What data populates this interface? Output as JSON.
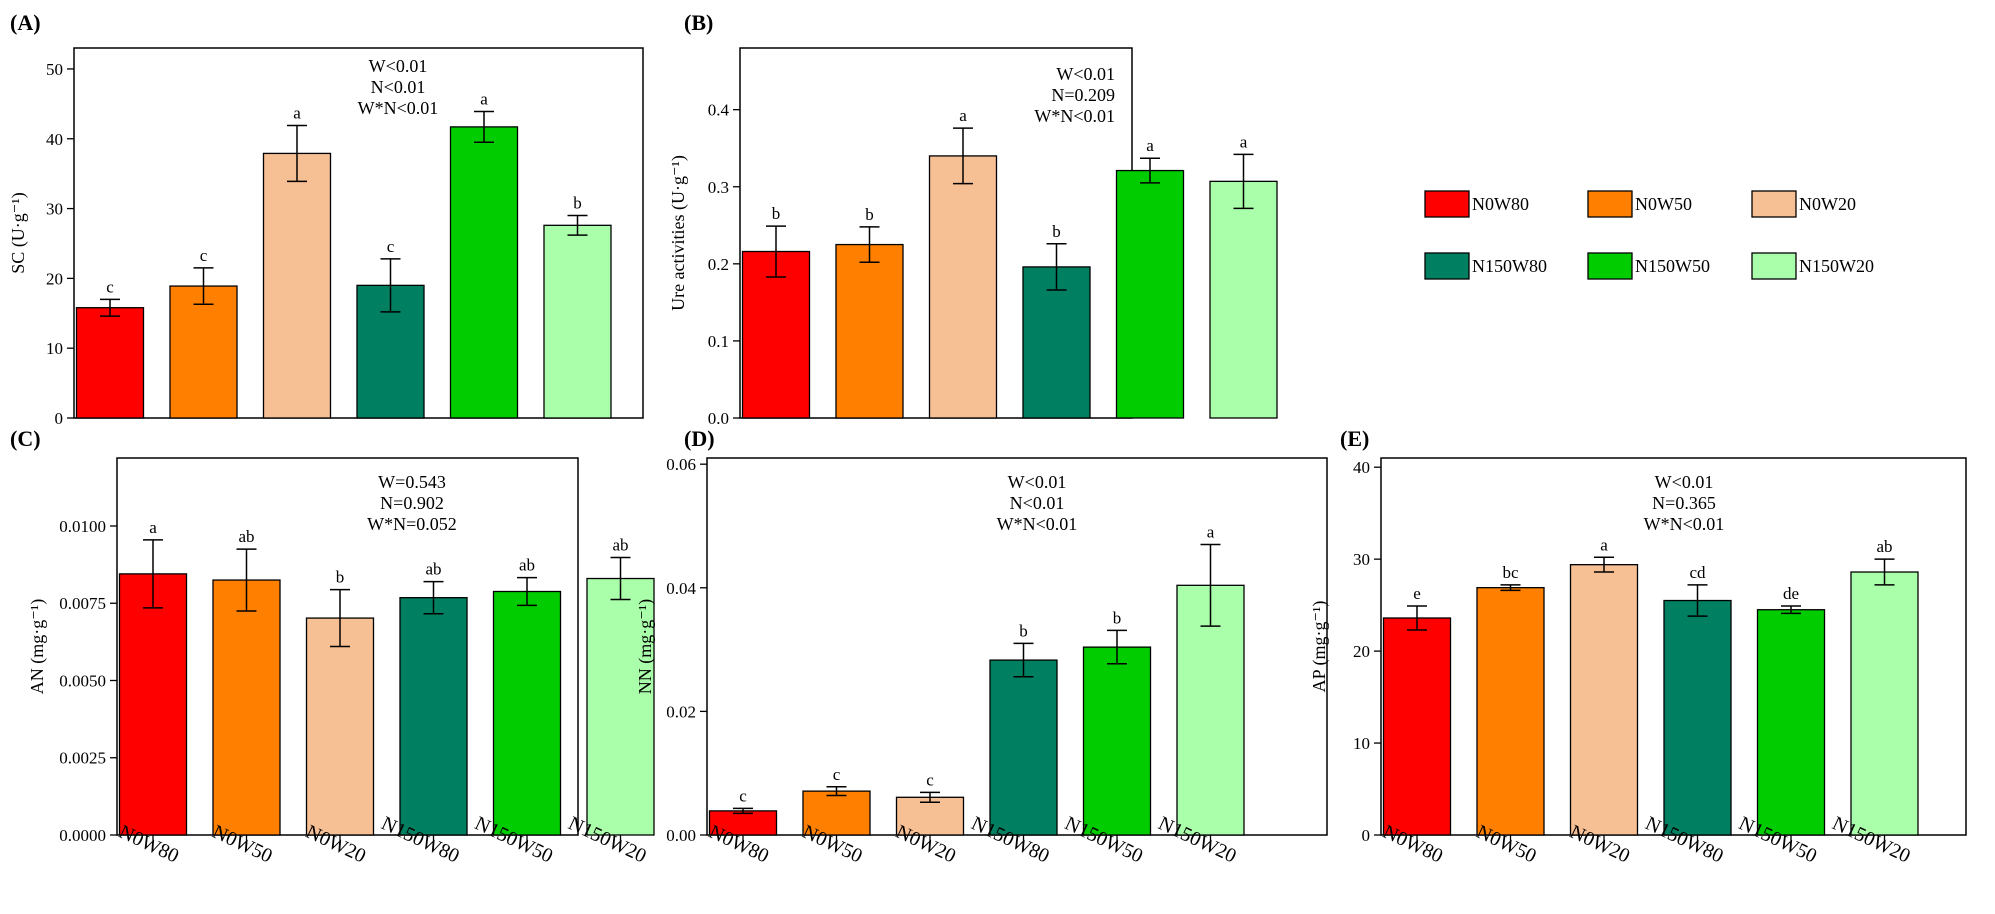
{
  "colors": {
    "N0W80": "#ff0000",
    "N0W50": "#ff8000",
    "N0W20": "#f7bf94",
    "N150W80": "#008060",
    "N150W50": "#00cc00",
    "N150W20": "#aaffaa"
  },
  "legend": {
    "entries": [
      {
        "key": "N0W80",
        "label": "N0W80"
      },
      {
        "key": "N0W50",
        "label": "N0W50"
      },
      {
        "key": "N0W20",
        "label": "N0W20"
      },
      {
        "key": "N150W80",
        "label": "N150W80"
      },
      {
        "key": "N150W50",
        "label": "N150W50"
      },
      {
        "key": "N150W20",
        "label": "N150W20"
      }
    ]
  },
  "chart_data": [
    {
      "id": "A",
      "panel_label": "(A)",
      "type": "bar",
      "ylabel": "SC (U·g⁻¹)",
      "ylim": [
        0,
        53
      ],
      "yticks": [
        "0",
        "10",
        "20",
        "30",
        "40",
        "50"
      ],
      "ytick_values": [
        0,
        10,
        20,
        30,
        40,
        50
      ],
      "categories": [
        "N0W80",
        "N0W50",
        "N0W20",
        "N150W80",
        "N150W50",
        "N150W20"
      ],
      "show_xlabels": false,
      "values": [
        15.8,
        18.9,
        37.9,
        19.0,
        41.7,
        27.6
      ],
      "errors": [
        1.2,
        2.6,
        4.0,
        3.8,
        2.2,
        1.4
      ],
      "letters": [
        "c",
        "c",
        "a",
        "c",
        "a",
        "b"
      ],
      "stats": [
        "W<0.01",
        "N<0.01",
        "W*N<0.01"
      ]
    },
    {
      "id": "B",
      "panel_label": "(B)",
      "type": "bar",
      "ylabel": "Ure activities (U·g⁻¹)",
      "ylim": [
        0,
        0.48
      ],
      "yticks": [
        "0.0",
        "0.1",
        "0.2",
        "0.3",
        "0.4"
      ],
      "ytick_values": [
        0,
        0.1,
        0.2,
        0.3,
        0.4
      ],
      "categories": [
        "N0W80",
        "N0W50",
        "N0W20",
        "N150W80",
        "N150W50",
        "N150W20"
      ],
      "show_xlabels": false,
      "values": [
        0.216,
        0.225,
        0.34,
        0.196,
        0.321,
        0.307
      ],
      "errors": [
        0.033,
        0.023,
        0.036,
        0.03,
        0.016,
        0.035
      ],
      "letters": [
        "b",
        "b",
        "a",
        "b",
        "a",
        "a"
      ],
      "stats": [
        "W<0.01",
        "N=0.209",
        "W*N<0.01"
      ]
    },
    {
      "id": "C",
      "panel_label": "(C)",
      "type": "bar",
      "ylabel": "AN  (mg·g⁻¹)",
      "ylim": [
        0,
        0.0122
      ],
      "yticks": [
        "0.0000",
        "0.0025",
        "0.0050",
        "0.0075",
        "0.0100"
      ],
      "ytick_values": [
        0,
        0.0025,
        0.005,
        0.0075,
        0.01
      ],
      "categories": [
        "N0W80",
        "N0W50",
        "N0W20",
        "N150W80",
        "N150W50",
        "N150W20"
      ],
      "show_xlabels": true,
      "values": [
        0.00845,
        0.00825,
        0.00702,
        0.00768,
        0.00788,
        0.0083
      ],
      "errors": [
        0.0011,
        0.001,
        0.00092,
        0.00052,
        0.00045,
        0.00068
      ],
      "letters": [
        "a",
        "ab",
        "b",
        "ab",
        "ab",
        "ab"
      ],
      "stats": [
        "W=0.543",
        "N=0.902",
        "W*N=0.052"
      ]
    },
    {
      "id": "D",
      "panel_label": "(D)",
      "type": "bar",
      "ylabel": "NN  (mg·g⁻¹)",
      "ylim": [
        0,
        0.061
      ],
      "yticks": [
        "0.00",
        "0.02",
        "0.04",
        "0.06"
      ],
      "ytick_values": [
        0,
        0.02,
        0.04,
        0.06
      ],
      "categories": [
        "N0W80",
        "N0W50",
        "N0W20",
        "N150W80",
        "N150W50",
        "N150W20"
      ],
      "show_xlabels": true,
      "values": [
        0.0039,
        0.0071,
        0.0061,
        0.0283,
        0.0304,
        0.0404
      ],
      "errors": [
        0.0004,
        0.0007,
        0.0008,
        0.0027,
        0.0027,
        0.0066
      ],
      "letters": [
        "c",
        "c",
        "c",
        "b",
        "b",
        "a"
      ],
      "stats": [
        "W<0.01",
        "N<0.01",
        "W*N<0.01"
      ]
    },
    {
      "id": "E",
      "panel_label": "(E)",
      "type": "bar",
      "ylabel": "AP (mg·g⁻¹)",
      "ylim": [
        0,
        41
      ],
      "yticks": [
        "0",
        "10",
        "20",
        "30",
        "40"
      ],
      "ytick_values": [
        0,
        10,
        20,
        30,
        40
      ],
      "categories": [
        "N0W80",
        "N0W50",
        "N0W20",
        "N150W80",
        "N150W50",
        "N150W20"
      ],
      "show_xlabels": true,
      "values": [
        23.6,
        26.9,
        29.4,
        25.5,
        24.5,
        28.6
      ],
      "errors": [
        1.3,
        0.3,
        0.8,
        1.7,
        0.4,
        1.4
      ],
      "letters": [
        "e",
        "bc",
        "a",
        "cd",
        "de",
        "ab"
      ],
      "stats": [
        "W<0.01",
        "N=0.365",
        "W*N<0.01"
      ]
    }
  ]
}
